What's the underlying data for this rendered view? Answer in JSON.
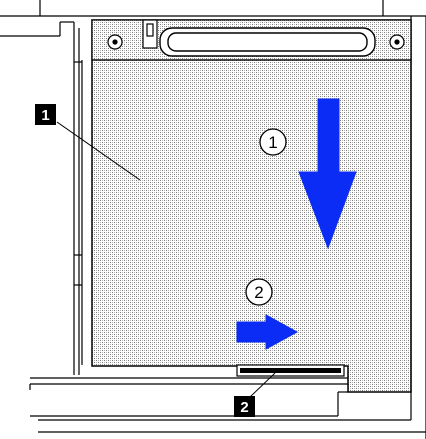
{
  "callouts": {
    "callout_1": "1",
    "callout_2": "2"
  },
  "steps": {
    "step_1": "1",
    "step_2": "2"
  },
  "colors": {
    "arrow_blue": "#0a2cf5",
    "line_black": "#000000",
    "panel_fill": "#d9d9d9",
    "background": "#ffffff"
  },
  "icons": {
    "step_1_arrow": "arrow-down-icon",
    "step_2_arrow": "arrow-right-icon",
    "connector": "connector-icon",
    "screw_holes": "screw-hole-icon"
  }
}
